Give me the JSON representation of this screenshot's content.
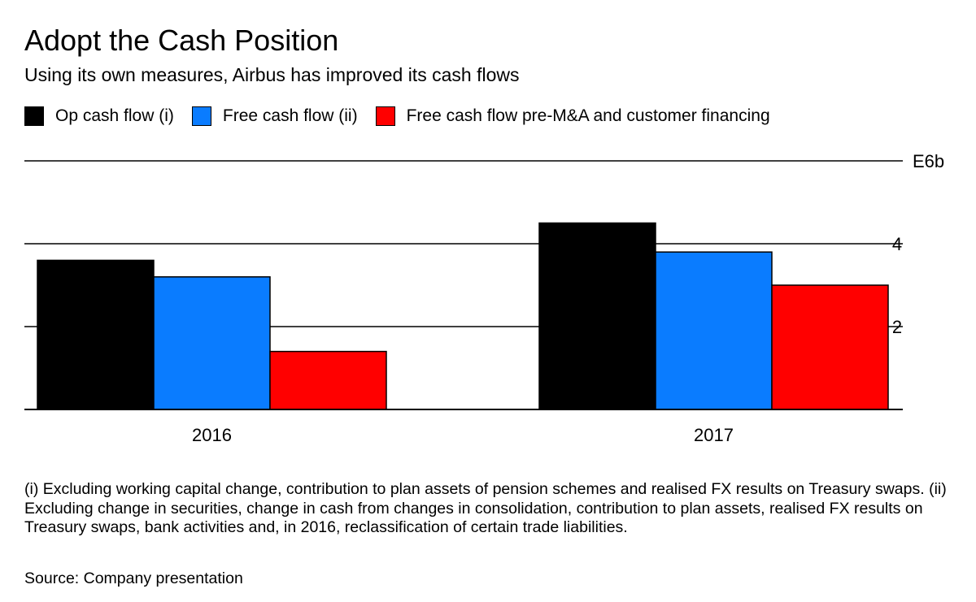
{
  "chart_data": {
    "type": "bar",
    "title": "Adopt the Cash Position",
    "subtitle": "Using its own measures, Airbus has improved its cash flows",
    "categories": [
      "2016",
      "2017"
    ],
    "series": [
      {
        "name": "Op cash flow (i)",
        "color": "#000000",
        "values": [
          3.6,
          4.5
        ]
      },
      {
        "name": "Free cash flow (ii)",
        "color": "#0a7cff",
        "values": [
          3.2,
          3.8
        ]
      },
      {
        "name": "Free cash flow pre-M&A and customer financing",
        "color": "#ff0000",
        "values": [
          1.4,
          3.0
        ]
      }
    ],
    "y_unit_label": "E6b",
    "y_ticks": [
      2,
      4
    ],
    "ylim": [
      0,
      6
    ],
    "grid": true,
    "axis_position": "right",
    "legend_position": "top-left",
    "footnote": "(i) Excluding working capital change, contribution to plan assets of pension schemes and realised FX results on Treasury swaps. (ii) Excluding change in securities, change in cash from changes in consolidation, contribution to plan assets, realised FX results on Treasury swaps, bank activities and, in 2016, reclassification of certain trade liabilities.",
    "source": "Source: Company presentation"
  }
}
